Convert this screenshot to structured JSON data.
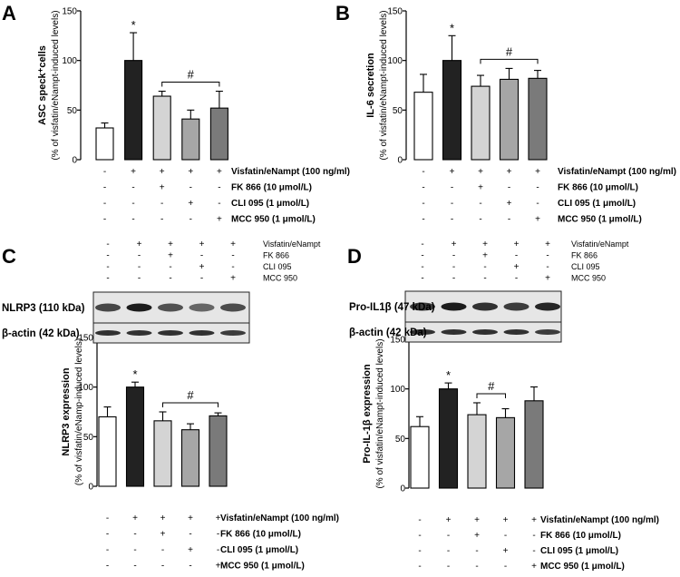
{
  "panels": {
    "A": "A",
    "B": "B",
    "C": "C",
    "D": "D"
  },
  "chart_data": [
    {
      "id": "A",
      "type": "bar",
      "ylabel": "ASC speck⁺cells",
      "ylabel2": "(% of visfatin/eNampt-induced levels)",
      "ylim": [
        0,
        150
      ],
      "yticks": [
        0,
        50,
        100,
        150
      ],
      "values": [
        32,
        100,
        64,
        41,
        52
      ],
      "errors": [
        5,
        28,
        5,
        9,
        17
      ],
      "colors": [
        "#ffffff",
        "#222222",
        "#d4d4d4",
        "#a6a6a6",
        "#7a7a7a"
      ],
      "significance": {
        "star": "*",
        "hash": "#",
        "hash_from": 2,
        "hash_to": 4
      },
      "conditions": [
        {
          "label": "Visfatin/eNampt (100 ng/ml)",
          "signs": [
            "-",
            "+",
            "+",
            "+",
            "+"
          ]
        },
        {
          "label": "FK 866 (10 μmol/L)",
          "signs": [
            "-",
            "-",
            "+",
            "-",
            "-"
          ]
        },
        {
          "label": "CLI 095 (1 μmol/L)",
          "signs": [
            "-",
            "-",
            "-",
            "+",
            "-"
          ]
        },
        {
          "label": "MCC 950 (1 μmol/L)",
          "signs": [
            "-",
            "-",
            "-",
            "-",
            "+"
          ]
        }
      ]
    },
    {
      "id": "B",
      "type": "bar",
      "ylabel": "IL-6 secretion",
      "ylabel2": "(% of visfatin/eNampt-induced levels)",
      "ylim": [
        0,
        150
      ],
      "yticks": [
        0,
        50,
        100,
        150
      ],
      "values": [
        68,
        100,
        74,
        81,
        82
      ],
      "errors": [
        18,
        25,
        11,
        11,
        8
      ],
      "colors": [
        "#ffffff",
        "#222222",
        "#d4d4d4",
        "#a6a6a6",
        "#7a7a7a"
      ],
      "significance": {
        "star": "*",
        "hash": "#",
        "hash_from": 2,
        "hash_to": 4
      },
      "conditions": [
        {
          "label": "Visfatin/eNampt (100 ng/ml)",
          "signs": [
            "-",
            "+",
            "+",
            "+",
            "+"
          ]
        },
        {
          "label": "FK 866 (10 μmol/L)",
          "signs": [
            "-",
            "-",
            "+",
            "-",
            "-"
          ]
        },
        {
          "label": "CLI 095 (1 μmol/L)",
          "signs": [
            "-",
            "-",
            "-",
            "+",
            "-"
          ]
        },
        {
          "label": "MCC 950 (1 μmol/L)",
          "signs": [
            "-",
            "-",
            "-",
            "-",
            "+"
          ]
        }
      ]
    },
    {
      "id": "C",
      "type": "bar",
      "ylabel": "NLRP3 expression",
      "ylabel2": "(% of visfatin/eNamp-induced levels)",
      "ylim": [
        0,
        150
      ],
      "yticks": [
        0,
        50,
        100,
        150
      ],
      "values": [
        70,
        100,
        66,
        57,
        71
      ],
      "errors": [
        10,
        5,
        9,
        6,
        3
      ],
      "colors": [
        "#ffffff",
        "#222222",
        "#d4d4d4",
        "#a6a6a6",
        "#7a7a7a"
      ],
      "significance": {
        "star": "*",
        "hash": "#",
        "hash_from": 2,
        "hash_to": 4
      },
      "conditions": [
        {
          "label": "Visfatin/eNampt (100 ng/ml)",
          "signs": [
            "-",
            "+",
            "+",
            "+",
            "+"
          ]
        },
        {
          "label": "FK 866 (10 μmol/L)",
          "signs": [
            "-",
            "-",
            "+",
            "-",
            "-"
          ]
        },
        {
          "label": "CLI 095 (1 μmol/L)",
          "signs": [
            "-",
            "-",
            "-",
            "+",
            "-"
          ]
        },
        {
          "label": "MCC 950 (1 μmol/L)",
          "signs": [
            "-",
            "-",
            "-",
            "-",
            "+"
          ]
        }
      ]
    },
    {
      "id": "D",
      "type": "bar",
      "ylabel": "Pro-IL-1β expression",
      "ylabel2": "(% of visfatin/eNampt-induced levels)",
      "ylim": [
        0,
        150
      ],
      "yticks": [
        0,
        50,
        100,
        150
      ],
      "values": [
        62,
        100,
        74,
        71,
        88
      ],
      "errors": [
        10,
        6,
        12,
        9,
        14
      ],
      "colors": [
        "#ffffff",
        "#222222",
        "#d4d4d4",
        "#a6a6a6",
        "#7a7a7a"
      ],
      "significance": {
        "star": "*",
        "hash": "#",
        "hash_from": 2,
        "hash_to": 3
      },
      "conditions": [
        {
          "label": "Visfatin/eNampt (100 ng/ml)",
          "signs": [
            "-",
            "+",
            "+",
            "+",
            "+"
          ]
        },
        {
          "label": "FK 866 (10 μmol/L)",
          "signs": [
            "-",
            "-",
            "+",
            "-",
            "-"
          ]
        },
        {
          "label": "CLI 095 (1 μmol/L)",
          "signs": [
            "-",
            "-",
            "-",
            "+",
            "-"
          ]
        },
        {
          "label": "MCC 950 (1 μmol/L)",
          "signs": [
            "-",
            "-",
            "-",
            "-",
            "+"
          ]
        }
      ]
    }
  ],
  "blots": [
    {
      "id": "C",
      "conditions": [
        {
          "label": "Visfatin/eNampt",
          "signs": [
            "-",
            "+",
            "+",
            "+",
            "+"
          ]
        },
        {
          "label": "FK 866",
          "signs": [
            "-",
            "-",
            "+",
            "-",
            "-"
          ]
        },
        {
          "label": "CLI 095",
          "signs": [
            "-",
            "-",
            "-",
            "+",
            "-"
          ]
        },
        {
          "label": "MCC 950",
          "signs": [
            "-",
            "-",
            "-",
            "-",
            "+"
          ]
        }
      ],
      "rows": [
        {
          "label": "NLRP3 (110 kDa)"
        },
        {
          "label": "β-actin (42 kDa)"
        }
      ]
    },
    {
      "id": "D",
      "conditions": [
        {
          "label": "Visfatin/eNampt",
          "signs": [
            "-",
            "+",
            "+",
            "+",
            "+"
          ]
        },
        {
          "label": "FK 866",
          "signs": [
            "-",
            "-",
            "+",
            "-",
            "-"
          ]
        },
        {
          "label": "CLI 095",
          "signs": [
            "-",
            "-",
            "-",
            "+",
            "-"
          ]
        },
        {
          "label": "MCC 950",
          "signs": [
            "-",
            "-",
            "-",
            "-",
            "+"
          ]
        }
      ],
      "rows": [
        {
          "label": "Pro-IL1β (47 kDa)"
        },
        {
          "label": "β-actin (42 kDa)"
        }
      ]
    }
  ]
}
